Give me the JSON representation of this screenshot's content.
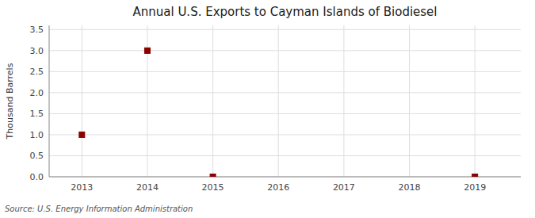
{
  "chart_data": {
    "type": "scatter",
    "title": "Annual U.S. Exports to Cayman Islands of Biodiesel",
    "ylabel": "Thousand Barrels",
    "annotation": "Source: U.S. Energy Information Administration",
    "x": [
      2013,
      2014,
      2015,
      2019
    ],
    "values": [
      1.0,
      3.0,
      0.0,
      0.0
    ],
    "xlim": [
      2012.5,
      2019.7
    ],
    "ylim": [
      0.0,
      3.6
    ],
    "xticks": [
      2013,
      2014,
      2015,
      2016,
      2017,
      2018,
      2019
    ],
    "yticks": [
      {
        "value": 0.0,
        "label": "0.0"
      },
      0.5,
      {
        "value": 1.0,
        "label": "1.0"
      },
      1.5,
      {
        "value": 2.0,
        "label": "2.0"
      },
      2.5,
      {
        "value": 3.0,
        "label": "3.0"
      },
      3.5
    ],
    "color": "#8B0000",
    "marker": "square",
    "grid": true
  }
}
